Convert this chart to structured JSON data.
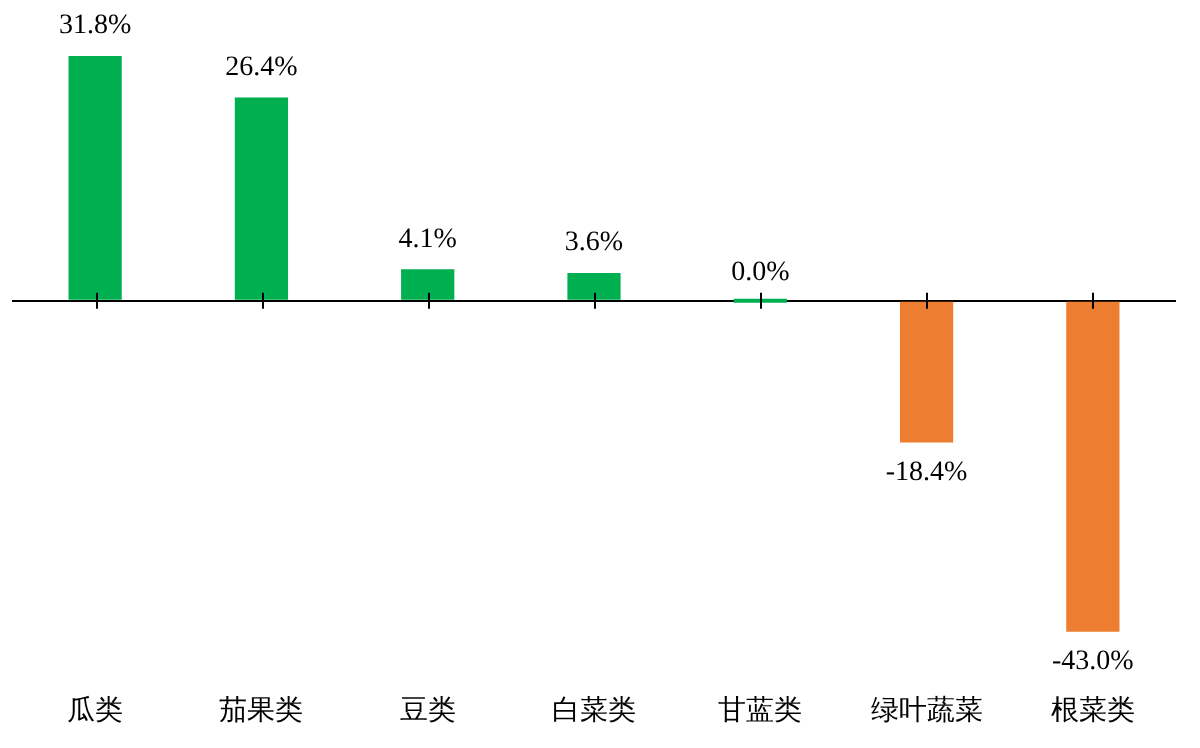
{
  "chart_data": {
    "type": "bar",
    "relative": false,
    "categories": [
      "瓜类",
      "茄果类",
      "豆类",
      "白菜类",
      "甘蓝类",
      "绿叶蔬菜",
      "根菜类"
    ],
    "values": [
      31.8,
      26.4,
      4.1,
      3.6,
      0.0,
      -18.4,
      -43.0
    ],
    "colors": [
      "#00b050",
      "#00b050",
      "#00b050",
      "#00b050",
      "#00b050",
      "#ed7d31",
      "#ed7d31"
    ],
    "value_labels": [
      "31.8%",
      "26.4%",
      "4.1%",
      "3.6%",
      "0.0%",
      "-18.4%",
      "-43.0%"
    ],
    "legend": false
  }
}
